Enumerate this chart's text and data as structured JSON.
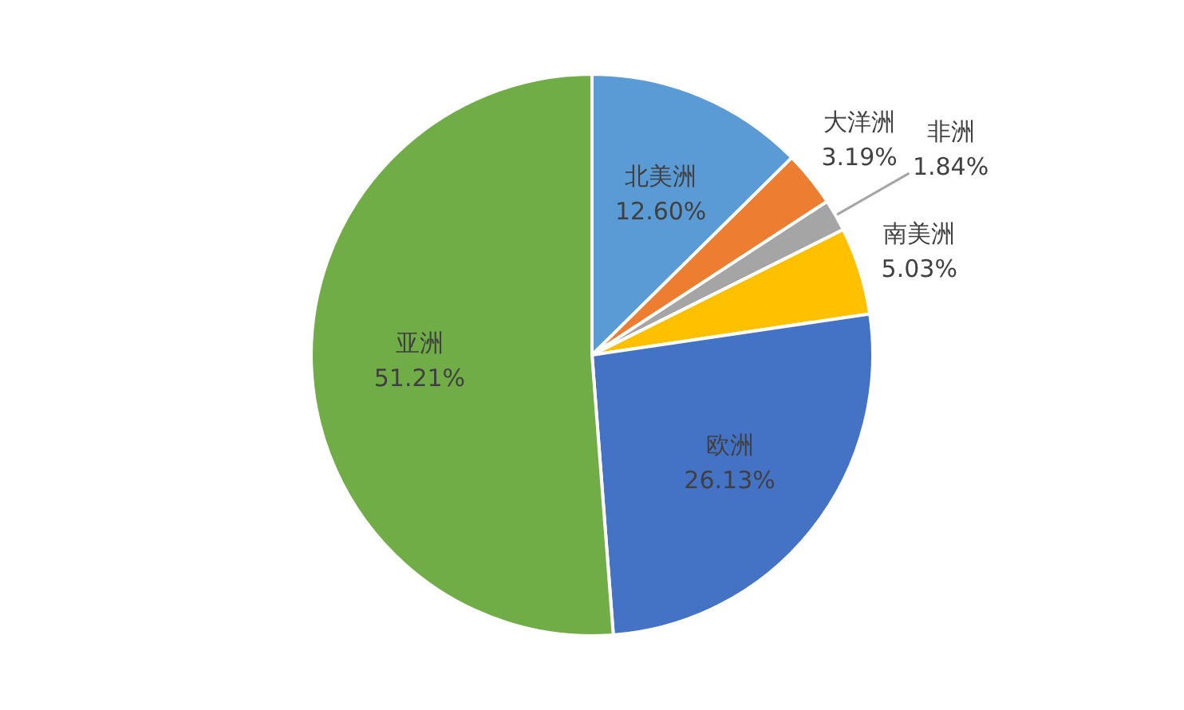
{
  "chart_data": {
    "type": "pie",
    "categories": [
      "北美洲",
      "大洋洲",
      "非洲",
      "南美洲",
      "欧洲",
      "亚洲"
    ],
    "values": [
      12.6,
      3.19,
      1.84,
      5.03,
      26.13,
      51.21
    ],
    "colors": [
      "#5b9bd5",
      "#ed7d31",
      "#a5a5a5",
      "#ffc000",
      "#4472c4",
      "#70ad47"
    ],
    "value_labels": [
      "12.60%",
      "3.19%",
      "1.84%",
      "5.03%",
      "26.13%",
      "51.21%"
    ]
  }
}
